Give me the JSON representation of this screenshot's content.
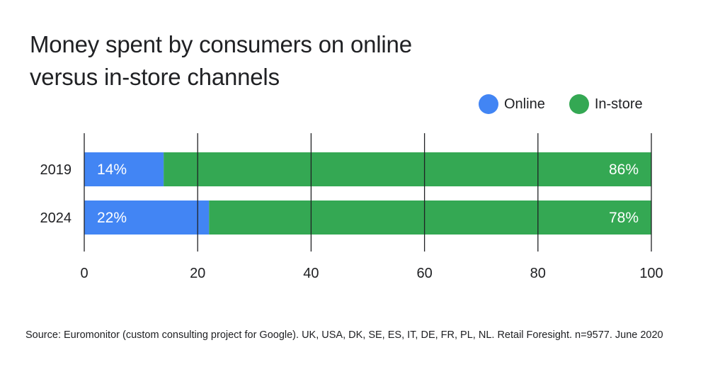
{
  "chart_data": {
    "type": "bar",
    "orientation": "horizontal",
    "stacked": true,
    "title": "Money spent by consumers on online versus in-store channels",
    "categories": [
      "2019",
      "2024"
    ],
    "series": [
      {
        "name": "Online",
        "values": [
          14,
          22
        ],
        "labels": [
          "14%",
          "22%"
        ],
        "color": "#4285f4"
      },
      {
        "name": "In-store",
        "values": [
          86,
          78
        ],
        "labels": [
          "86%",
          "78%"
        ],
        "color": "#34a853"
      }
    ],
    "xlim": [
      0,
      100
    ],
    "xticks": [
      0,
      20,
      40,
      60,
      80,
      100
    ],
    "grid": true,
    "legend_position": "top-right"
  },
  "source": "Source: Euromonitor (custom consulting project for Google). UK, USA, DK, SE, ES, IT, DE, FR, PL, NL. Retail Foresight. n=9577. June 2020"
}
